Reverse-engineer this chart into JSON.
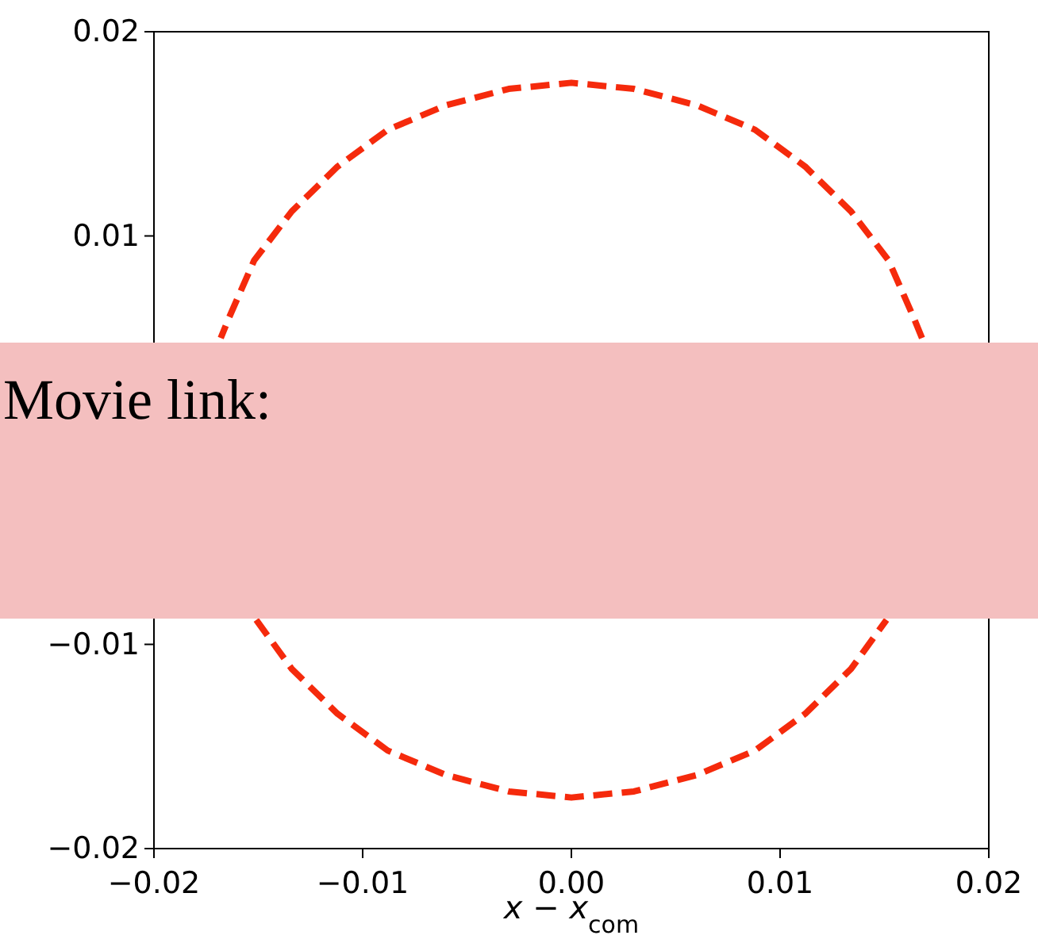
{
  "chart_data": {
    "type": "line",
    "xlabel": "x − x$_{com}$",
    "line_style": "dashed",
    "xlim": [
      -0.02,
      0.02
    ],
    "xticks": [
      {
        "value": -0.02,
        "label": "−0.02"
      },
      {
        "value": -0.01,
        "label": "−0.01"
      },
      {
        "value": 0,
        "label": "0.00"
      },
      {
        "value": 0.01,
        "label": "0.01"
      },
      {
        "value": 0.02,
        "label": "0.02"
      }
    ],
    "ylim": [
      -0.02,
      0.02
    ],
    "yticks": [
      {
        "value": -0.02,
        "label": "−0.02"
      },
      {
        "value": -0.01,
        "label": "−0.01"
      },
      {
        "value": 0.01,
        "label": "0.01"
      },
      {
        "value": 0.02,
        "label": "0.02"
      }
    ],
    "series": [
      {
        "color": "#f52a0c",
        "x": [
          0.0168,
          0.0164,
          0.0152,
          0.0134,
          0.0112,
          0.0088,
          0.006,
          0.003,
          0,
          -0.003,
          -0.006,
          -0.0088,
          -0.0112,
          -0.0134,
          -0.0152,
          -0.0164,
          -0.0168
        ],
        "values": [
          0.005,
          0.006,
          0.0088,
          0.0112,
          0.0134,
          0.0152,
          0.0164,
          0.0172,
          0.0175,
          0.0172,
          0.0164,
          0.0152,
          0.0134,
          0.0112,
          0.0088,
          0.006,
          0.005
        ]
      },
      {
        "color": "#f52a0c",
        "x": [
          -0.0151,
          -0.0134,
          -0.0112,
          -0.0088,
          -0.006,
          -0.003,
          0,
          0.003,
          0.006,
          0.0088,
          0.0112,
          0.0134,
          0.0151
        ],
        "values": [
          -0.0088,
          -0.0112,
          -0.0134,
          -0.0152,
          -0.0164,
          -0.0172,
          -0.0175,
          -0.0172,
          -0.0164,
          -0.0152,
          -0.0134,
          -0.0112,
          -0.0088
        ]
      }
    ],
    "annotations": [
      "Movie link:"
    ]
  }
}
